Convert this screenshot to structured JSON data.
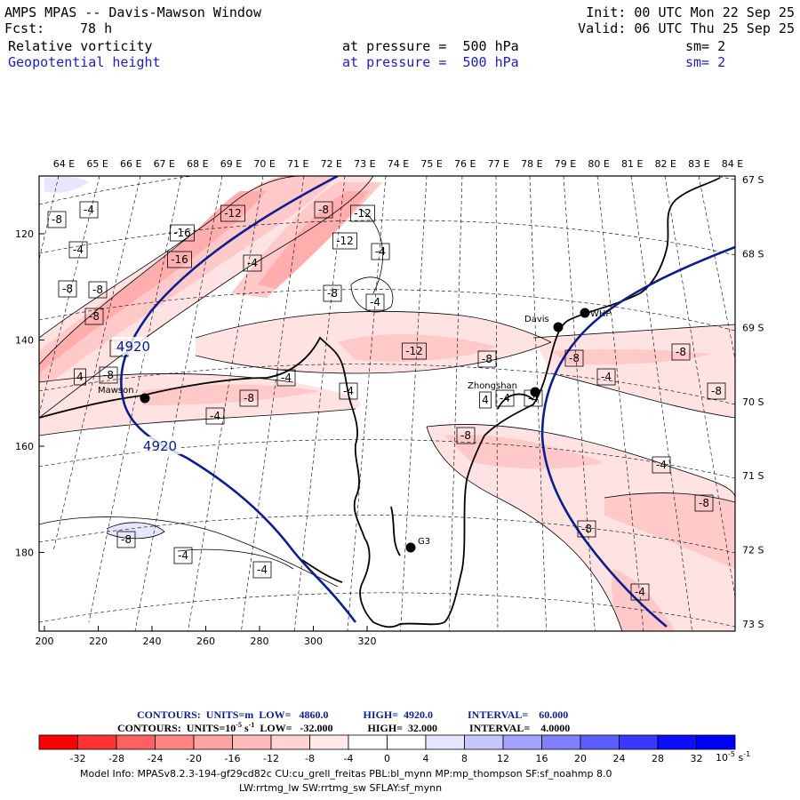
{
  "header": {
    "title": "AMPS MPAS -- Davis-Mawson Window",
    "fcst_label": "Fcst:",
    "fcst_value": "78 h",
    "init": "Init: 00 UTC Mon 22 Sep 25",
    "valid": "Valid: 06 UTC Thu 25 Sep 25",
    "field1_name": "Relative vorticity",
    "field1_level": "at pressure =  500 hPa",
    "field1_sm": "sm= 2",
    "field2_name": "Geopotential height",
    "field2_level": "at pressure =  500 hPa",
    "field2_sm": "sm= 2"
  },
  "map": {
    "longitude_labels": [
      "64 E",
      "65 E",
      "66 E",
      "67 E",
      "68 E",
      "69 E",
      "70 E",
      "71 E",
      "72 E",
      "73 E",
      "74 E",
      "75 E",
      "76 E",
      "77 E",
      "78 E",
      "79 E",
      "80 E",
      "81 E",
      "82 E",
      "83 E",
      "84 E"
    ],
    "latitude_labels": [
      "67 S",
      "68 S",
      "69 S",
      "70 S",
      "71 S",
      "72 S",
      "73 S"
    ],
    "x_ticks": [
      "200",
      "220",
      "240",
      "260",
      "280",
      "300",
      "320"
    ],
    "y_ticks": [
      "120",
      "140",
      "160",
      "180"
    ],
    "stations": [
      {
        "name": "Davis"
      },
      {
        "name": "WHP"
      },
      {
        "name": "Zhongshan"
      },
      {
        "name": "Mawson"
      },
      {
        "name": "G3"
      }
    ],
    "height_contour_labels": [
      "4920",
      "4920"
    ],
    "vorticity_labels": [
      "-8",
      "-4",
      "-12",
      "-8",
      "-16",
      "-12",
      "-4",
      "-16",
      "-12",
      "-4",
      "-4",
      "-8",
      "-8",
      "-4",
      "-8",
      "-8",
      "-8",
      "-12",
      "-8",
      "-4",
      "-8",
      "-4",
      "-8",
      "-4",
      "-8",
      "-8",
      "-4",
      "-8",
      "-4",
      "-4",
      "-8",
      "-8",
      "-4",
      "-4",
      "-8",
      "-4",
      "4",
      "-4",
      "4",
      "-4"
    ],
    "colors": {
      "height_contour": "#0a1f8f",
      "coastline": "#000000",
      "vorticity_contour": "#000000"
    }
  },
  "legend": {
    "height_contours": "CONTOURS:  UNITS=m  LOW=   4860.0             HIGH=  4920.0             INTERVAL=    60.000",
    "vort_contours_a": "CONTOURS:  UNITS=10",
    "vort_contours_exp": "-5",
    "vort_contours_b": " s",
    "vort_contours_exp2": "-1",
    "vort_contours_c": "  LOW=   -32.000             HIGH=  32.000            INTERVAL=    4.0000",
    "colorbar_labels": [
      "-32",
      "-28",
      "-24",
      "-20",
      "-16",
      "-12",
      "-8",
      "-4",
      "0",
      "4",
      "8",
      "12",
      "16",
      "20",
      "24",
      "28",
      "32"
    ],
    "colorbar_unit": "10",
    "colorbar_unit_exp": "-5",
    "colorbar_unit_b": " s",
    "colorbar_unit_exp2": "-1",
    "colorbar_colors": [
      "#ff0000",
      "#ff3333",
      "#ff6060",
      "#ff8585",
      "#ffa3a3",
      "#ffbcbc",
      "#ffd3d3",
      "#ffe9e9",
      "#ffffff",
      "#ffffff",
      "#e6e6ff",
      "#c7c7ff",
      "#a3a3ff",
      "#8080ff",
      "#5c5cff",
      "#3838ff",
      "#0d0dff",
      "#0000ff"
    ]
  },
  "model_info": {
    "line1": "Model Info: MPASv8.2.3-194-gf29cd82c CU:cu_grell_freitas PBL:bl_mynn MP:mp_thompson SF:sf_noahmp 8.0",
    "line2": "LW:rrtmg_lw SW:rrtmg_sw SFLAY:sf_mynn"
  }
}
